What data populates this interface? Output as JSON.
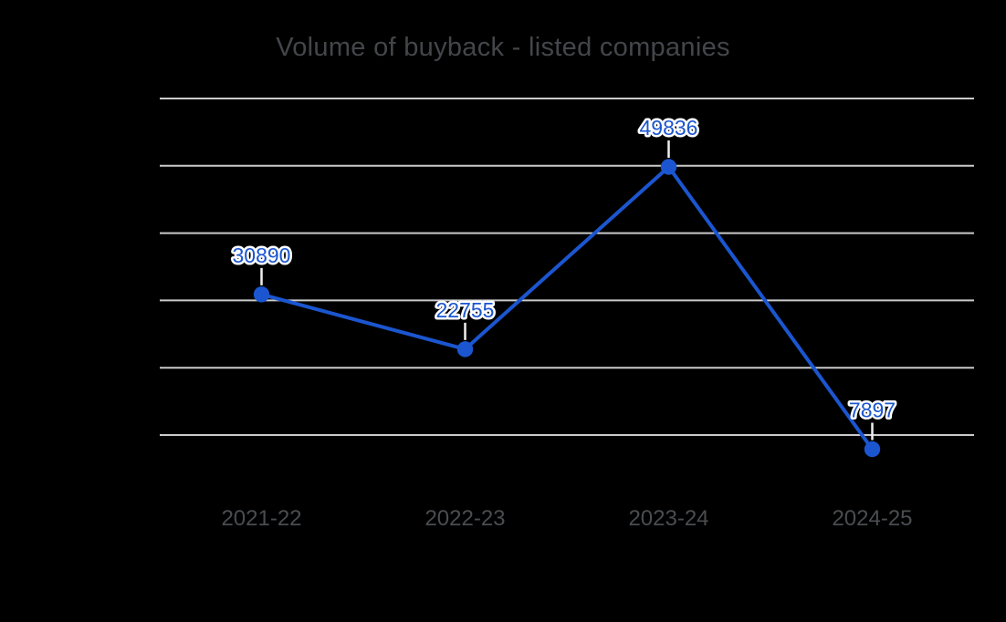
{
  "page": {
    "background_color": "#000000"
  },
  "chart_data": {
    "type": "line",
    "title": "Volume of buyback - listed companies",
    "categories": [
      "2021-22",
      "2022-23",
      "2023-24",
      "2024-25"
    ],
    "values": [
      30890,
      22755,
      49836,
      7897
    ],
    "data_labels": [
      "30890",
      "22755",
      "49836",
      "7897"
    ],
    "xlabel": "",
    "ylabel": "",
    "ylim": [
      10000,
      60000
    ],
    "gridline_values": [
      10000,
      20000,
      30000,
      40000,
      50000,
      60000
    ],
    "grid": "horizontal",
    "y_axis_tick_labels_visible": false,
    "legend_position": "none",
    "markers": "filled-circle",
    "data_label_position": "above-point-with-leader-line"
  },
  "style": {
    "background_color": "#000000",
    "series_color": "#1b56d0",
    "point_color": "#1b56d0",
    "data_label_color": "#1b56d0",
    "data_label_halo_color": "#ffffff",
    "leader_line_color": "#efefef",
    "gridline_color": "#cbcbcb",
    "title_color": "#43464a",
    "axis_label_color": "#4a4d50"
  }
}
